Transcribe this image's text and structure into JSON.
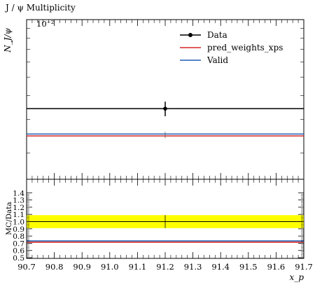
{
  "chart_data": {
    "type": "line",
    "title": "J / ψ Multiplicity",
    "main_panel": {
      "ylabel": "N_J/ψ",
      "yscale": "log",
      "y_axis_label": "10⁻²",
      "xlim": [
        90.7,
        91.7
      ],
      "series": [
        {
          "name": "Data",
          "style": "points-with-errors",
          "color": "#000000",
          "x": [
            91.2
          ],
          "y": [
            0.00342
          ],
          "yerr": [
            0.0003
          ],
          "xerr_range": [
            90.7,
            91.7
          ]
        },
        {
          "name": "pred_weights_xps",
          "style": "step-line",
          "color": "#d62728",
          "x_range": [
            90.7,
            91.7
          ],
          "y": 0.00246
        },
        {
          "name": "Valid",
          "style": "step-line",
          "color": "#1f5fb4",
          "x_range": [
            90.7,
            91.7
          ],
          "y": 0.00252
        }
      ],
      "legend": {
        "placement": "top-right",
        "entries": [
          "Data",
          "pred_weights_xps",
          "Valid"
        ]
      }
    },
    "ratio_panel": {
      "ylabel": "MC/Data",
      "ylim": [
        0.5,
        1.5
      ],
      "yticks": [
        0.5,
        0.6,
        0.7,
        0.8,
        0.9,
        1.0,
        1.1,
        1.2,
        1.3,
        1.4
      ],
      "yticklabels": [
        "0.5",
        "0.6",
        "0.7",
        "0.8",
        "0.9",
        "1.0",
        "1.1",
        "1.2",
        "1.3",
        "1.4"
      ],
      "data_band": {
        "low": 0.91,
        "high": 1.09,
        "color": "#ffff00"
      },
      "reference": 1.0,
      "series": [
        {
          "name": "pred_weights_xps",
          "color": "#d62728",
          "y": 0.715
        },
        {
          "name": "Valid",
          "color": "#1f5fb4",
          "y": 0.733
        }
      ]
    },
    "xlabel": "x_p",
    "xticks": [
      90.7,
      90.8,
      90.9,
      91.0,
      91.1,
      91.2,
      91.3,
      91.4,
      91.5,
      91.6,
      91.7
    ],
    "xticklabels": [
      "90.7",
      "90.8",
      "90.9",
      "91.0",
      "91.1",
      "91.2",
      "91.3",
      "91.4",
      "91.5",
      "91.6",
      "91.7"
    ],
    "xlim": [
      90.7,
      91.7
    ]
  }
}
